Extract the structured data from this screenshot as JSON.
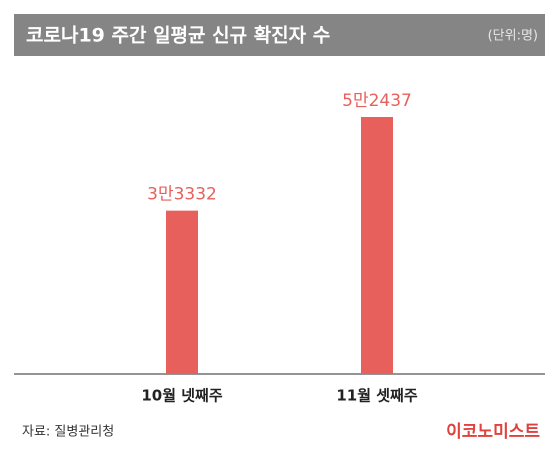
{
  "chart_data": {
    "type": "bar",
    "title": "코로나19 주간 일평균 신규 확진자 수",
    "unit": "(단위:명)",
    "categories": [
      "10월 넷째주",
      "11월 셋째주"
    ],
    "values": [
      33332,
      52437
    ],
    "value_labels": [
      "3만3332",
      "5만2437"
    ],
    "color": "#e8605c",
    "source": "자료: 질병관리청",
    "logo": "이코노미스트"
  }
}
